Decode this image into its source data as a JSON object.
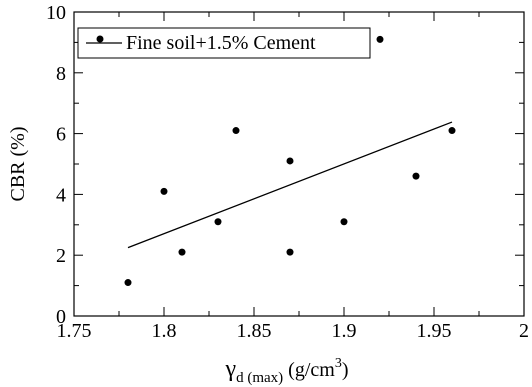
{
  "chart_data": {
    "type": "scatter",
    "xlim": [
      1.75,
      2.0
    ],
    "ylim": [
      0,
      10
    ],
    "x_ticks": [
      "1.75",
      "1.8",
      "1.85",
      "1.9",
      "1.95",
      "2"
    ],
    "y_ticks": [
      "0",
      "2",
      "4",
      "6",
      "8",
      "10"
    ],
    "xlabel": {
      "symbol": "γ",
      "subscript": "d (max)",
      "units": " (g/cm",
      "superscript": "3",
      "close": ")"
    },
    "ylabel": "CBR (%)",
    "grid": false,
    "legend_position": "top-left",
    "series": [
      {
        "name": "Fine soil+1.5% Cement",
        "points": [
          {
            "x": 1.78,
            "y": 1.1
          },
          {
            "x": 1.8,
            "y": 4.1
          },
          {
            "x": 1.81,
            "y": 2.1
          },
          {
            "x": 1.83,
            "y": 3.1
          },
          {
            "x": 1.84,
            "y": 6.1
          },
          {
            "x": 1.87,
            "y": 5.1
          },
          {
            "x": 1.87,
            "y": 2.1
          },
          {
            "x": 1.9,
            "y": 3.1
          },
          {
            "x": 1.92,
            "y": 9.1
          },
          {
            "x": 1.94,
            "y": 4.6
          },
          {
            "x": 1.96,
            "y": 6.1
          }
        ],
        "trendline": {
          "x1": 1.78,
          "y1": 2.25,
          "x2": 1.96,
          "y2": 6.38
        }
      }
    ],
    "colors": {
      "marks": "#000000",
      "background": "#ffffff"
    }
  }
}
